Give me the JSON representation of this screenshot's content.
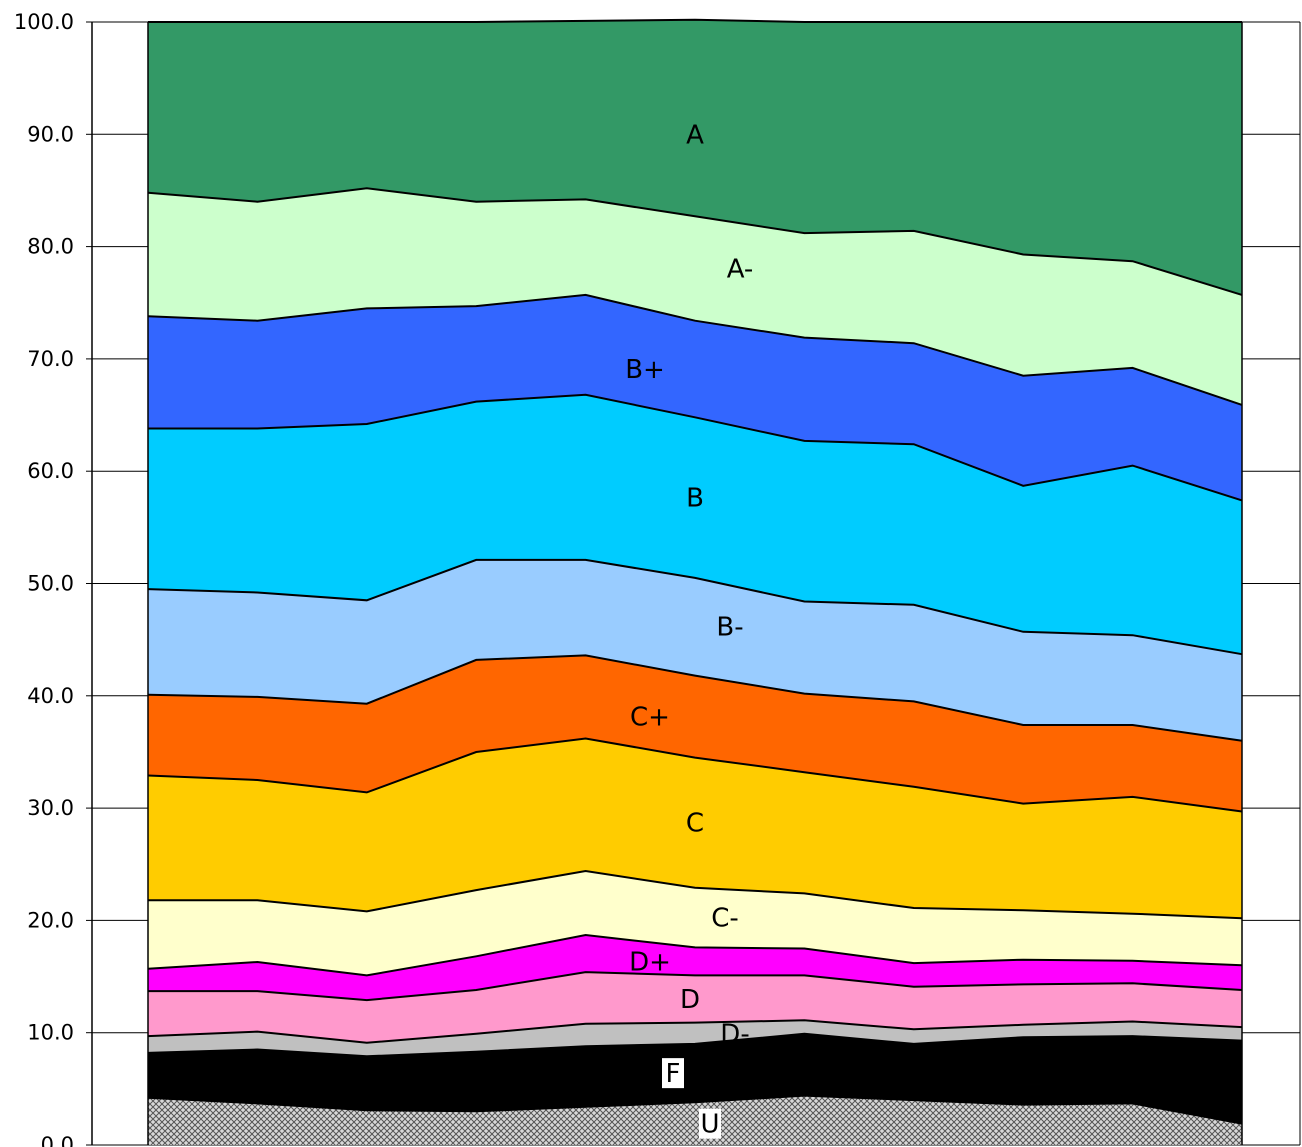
{
  "chart_data": {
    "type": "area",
    "stacked": true,
    "title": "",
    "xlabel": "",
    "ylabel": "",
    "ylim": [
      0,
      100
    ],
    "y_ticks": [
      "0.0",
      "10.0",
      "20.0",
      "30.0",
      "40.0",
      "50.0",
      "60.0",
      "70.0",
      "80.0",
      "90.0",
      "100.0"
    ],
    "x_count": 11,
    "grid": "horizontal",
    "legend": "inline labels",
    "series": [
      {
        "name": "U",
        "color": "#d0d0d0",
        "hatched": true,
        "values": [
          4.2,
          3.7,
          3.1,
          3.0,
          3.4,
          3.8,
          4.4,
          4.0,
          3.6,
          3.7,
          1.9
        ]
      },
      {
        "name": "F",
        "color": "#000000",
        "values": [
          4.0,
          4.8,
          4.8,
          5.3,
          5.4,
          5.2,
          5.5,
          5.0,
          6.0,
          6.0,
          7.4
        ]
      },
      {
        "name": "D-",
        "color": "#c0c0c0",
        "values": [
          1.5,
          1.6,
          1.2,
          1.6,
          2.0,
          1.9,
          1.2,
          1.3,
          1.1,
          1.3,
          1.2
        ]
      },
      {
        "name": "D",
        "color": "#ff99cc",
        "values": [
          4.0,
          3.6,
          3.8,
          3.9,
          4.6,
          4.2,
          4.0,
          3.8,
          3.6,
          3.4,
          3.3
        ]
      },
      {
        "name": "D+",
        "color": "#ff00ff",
        "values": [
          2.0,
          2.6,
          2.2,
          3.0,
          3.3,
          2.5,
          2.4,
          2.1,
          2.2,
          2.0,
          2.2
        ]
      },
      {
        "name": "C-",
        "color": "#ffffcc",
        "values": [
          6.1,
          5.5,
          5.7,
          5.9,
          5.7,
          5.3,
          4.9,
          4.9,
          4.4,
          4.2,
          4.2
        ]
      },
      {
        "name": "C",
        "color": "#ffcc00",
        "values": [
          11.1,
          10.7,
          10.6,
          12.3,
          11.8,
          11.6,
          10.8,
          10.8,
          9.5,
          10.4,
          9.5
        ]
      },
      {
        "name": "C+",
        "color": "#ff6600",
        "values": [
          7.2,
          7.4,
          7.9,
          8.2,
          7.4,
          7.3,
          7.0,
          7.6,
          7.0,
          6.4,
          6.3
        ]
      },
      {
        "name": "B-",
        "color": "#99ccff",
        "values": [
          9.4,
          9.3,
          9.2,
          8.9,
          8.5,
          8.7,
          8.2,
          8.6,
          8.3,
          8.0,
          7.7
        ]
      },
      {
        "name": "B",
        "color": "#00ccff",
        "values": [
          14.3,
          14.6,
          15.7,
          14.1,
          14.7,
          14.3,
          14.3,
          14.3,
          13.0,
          15.1,
          13.7
        ]
      },
      {
        "name": "B+",
        "color": "#3366ff",
        "values": [
          10.0,
          9.6,
          10.3,
          8.5,
          8.9,
          8.6,
          9.2,
          9.0,
          9.8,
          8.7,
          8.5
        ]
      },
      {
        "name": "A-",
        "color": "#ccffcc",
        "values": [
          11.0,
          10.6,
          10.7,
          9.3,
          8.5,
          9.3,
          9.3,
          10.0,
          10.8,
          9.5,
          9.8
        ]
      },
      {
        "name": "A",
        "color": "#339966",
        "values": [
          15.2,
          16.0,
          14.8,
          16.0,
          15.9,
          17.5,
          18.8,
          18.6,
          20.7,
          21.3,
          24.3
        ]
      }
    ]
  }
}
